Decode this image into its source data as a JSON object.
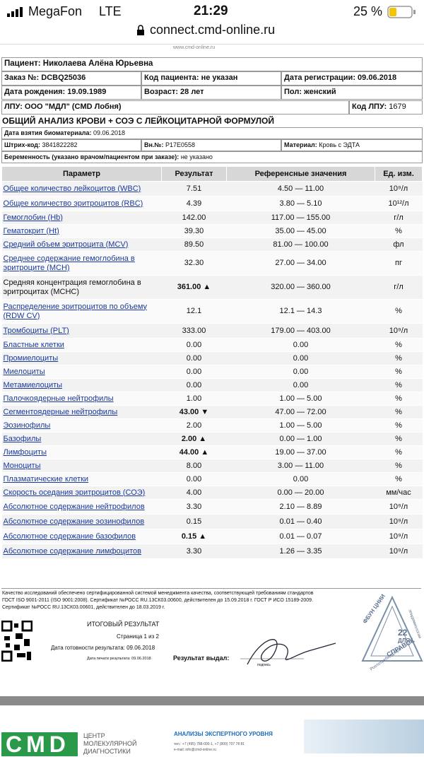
{
  "status": {
    "carrier": "MegaFon",
    "network": "LTE",
    "time": "21:29",
    "battery": "25 %",
    "url": "connect.cmd-online.ru"
  },
  "header": {
    "site": "www.cmd-online.ru"
  },
  "patient": "Пациент: Николаева Алёна Юрьевна",
  "info": [
    [
      "Заказ №: DCBQ25036",
      "Код пациента: не указан",
      "Дата регистрации: 09.06.2018"
    ],
    [
      "Дата рождения: 19.09.1989",
      "Возраст: 28 лет",
      "Пол: женский"
    ]
  ],
  "lpu": {
    "label": "ЛПУ: ООО \"МДЛ\" (CMD Лобня)",
    "code_label": "Код ЛПУ:",
    "code": "1679"
  },
  "title": "ОБЩИЙ АНАЛИЗ КРОВИ + СОЭ С ЛЕЙКОЦИТАРНОЙ ФОРМУЛОЙ",
  "sample": {
    "label": "Дата взятия биоматериала:",
    "value": "09.06.2018"
  },
  "barcode": [
    {
      "label": "Штрих-код:",
      "value": "3841822282"
    },
    {
      "label": "Вн.№:",
      "value": "P17E0558"
    },
    {
      "label": "Материал:",
      "value": "Кровь с ЭДТА"
    }
  ],
  "pregnancy": {
    "label": "Беременность (указано врачом/пациентом при заказе):",
    "value": "не указано"
  },
  "table": {
    "header": [
      "Параметр",
      "Результат",
      "Референсные значения",
      "Ед. изм."
    ],
    "rows": [
      {
        "name": "Общее количество лейкоцитов (WBC)",
        "result": "7.51",
        "ref": "4.50 — 11.00",
        "unit": "10⁹/л"
      },
      {
        "name": "Общее количество эритроцитов (RBC)",
        "result": "4.39",
        "ref": "3.80 — 5.10",
        "unit": "10¹²/л"
      },
      {
        "name": "Гемоглобин (Hb)",
        "result": "142.00",
        "ref": "117.00 — 155.00",
        "unit": "г/л"
      },
      {
        "name": "Гематокрит (Ht)",
        "result": "39.30",
        "ref": "35.00 — 45.00",
        "unit": "%"
      },
      {
        "name": "Средний объем эритроцита (MCV)",
        "result": "89.50",
        "ref": "81.00 — 100.00",
        "unit": "фл"
      },
      {
        "name": "Среднее содержание гемоглобина в эритроците (MCH)",
        "result": "32.30",
        "ref": "27.00 — 34.00",
        "unit": "пг"
      },
      {
        "name": "Средняя концентрация гемоглобина в эритроцитах (MCHC)",
        "result": "361.00 ▲",
        "ref": "320.00 — 360.00",
        "unit": "г/л",
        "bold": true,
        "link": false
      },
      {
        "name": "Распределение эритроцитов по объему (RDW CV)",
        "result": "12.1",
        "ref": "12.1 — 14.3",
        "unit": "%"
      },
      {
        "name": "Тромбоциты (PLT)",
        "result": "333.00",
        "ref": "179.00 — 403.00",
        "unit": "10⁹/л"
      },
      {
        "name": "Бластные клетки",
        "result": "0.00",
        "ref": "0.00",
        "unit": "%"
      },
      {
        "name": "Промиелоциты",
        "result": "0.00",
        "ref": "0.00",
        "unit": "%"
      },
      {
        "name": "Миелоциты",
        "result": "0.00",
        "ref": "0.00",
        "unit": "%"
      },
      {
        "name": "Метамиелоциты",
        "result": "0.00",
        "ref": "0.00",
        "unit": "%"
      },
      {
        "name": "Палочкоядерные нейтрофилы",
        "result": "1.00",
        "ref": "1.00 — 5.00",
        "unit": "%"
      },
      {
        "name": "Сегментоядерные нейтрофилы",
        "result": "43.00 ▼",
        "ref": "47.00 — 72.00",
        "unit": "%",
        "bold": true
      },
      {
        "name": "Эозинофилы",
        "result": "2.00",
        "ref": "1.00 — 5.00",
        "unit": "%"
      },
      {
        "name": "Базофилы",
        "result": "2.00 ▲",
        "ref": "0.00 — 1.00",
        "unit": "%",
        "bold": true
      },
      {
        "name": "Лимфоциты",
        "result": "44.00 ▲",
        "ref": "19.00 — 37.00",
        "unit": "%",
        "bold": true
      },
      {
        "name": "Моноциты",
        "result": "8.00",
        "ref": "3.00 — 11.00",
        "unit": "%"
      },
      {
        "name": "Плазматические клетки",
        "result": "0.00",
        "ref": "0.00",
        "unit": "%"
      },
      {
        "name": "Скорость оседания эритроцитов (СОЭ)",
        "result": "4.00",
        "ref": "0.00 — 20.00",
        "unit": "мм/час"
      },
      {
        "name": "Абсолютное содержание нейтрофилов",
        "result": "3.30",
        "ref": "2.10 — 8.89",
        "unit": "10⁹/л"
      },
      {
        "name": "Абсолютное содержание эозинофилов",
        "result": "0.15",
        "ref": "0.01 — 0.40",
        "unit": "10⁹/л"
      },
      {
        "name": "Абсолютное содержание базофилов",
        "result": "0.15 ▲",
        "ref": "0.01 — 0.07",
        "unit": "10⁹/л",
        "bold": true
      },
      {
        "name": "Абсолютное содержание лимфоцитов",
        "result": "3.30",
        "ref": "1.26 — 3.35",
        "unit": "10⁹/л"
      }
    ]
  },
  "certification": [
    "Качество исследований обеспечено сертифицированной системой менеджмента качества, соответствующей требованиям стандартов",
    "ГОСТ ISO 9001-2011 (ISO 9001:2008). Сертификат №РОСС RU.13СК03.00600, действителен до 15.09.2018 г. ГОСТ Р ИСО 15189-2009.",
    "Сертификат №РОСС RU.13СК03.00601, действителен до 18.03.2019 г."
  ],
  "footer": {
    "final": "ИТОГОВЫЙ РЕЗУЛЬТАТ",
    "page": "Страница 1 из 2",
    "ready": "Дата готовности результата: 09.06.2018",
    "printed": "Дата печати результата: 09.06.2018",
    "issued": "Результат выдал:",
    "signature": "подпись"
  },
  "stamp": {
    "top": "ФБУН ЦНИИ",
    "number": "22",
    "line1": "ДЛЯ",
    "line2": "СПРАВОК",
    "bottom": "Роспотребнадзора",
    "side": "эпидемиологии"
  },
  "brand": {
    "logo": "CMD",
    "name": [
      "ЦЕНТР",
      "МОЛЕКУЛЯРНОЙ",
      "ДИАГНОСТИКИ"
    ],
    "slogan": "АНАЛИЗЫ ЭКСПЕРТНОГО УРОВНЯ",
    "phone": "тел.: +7 (495) 788-000-1, +7 (800) 707 78 81",
    "email": "e-mail: info@cmd-online.ru"
  }
}
